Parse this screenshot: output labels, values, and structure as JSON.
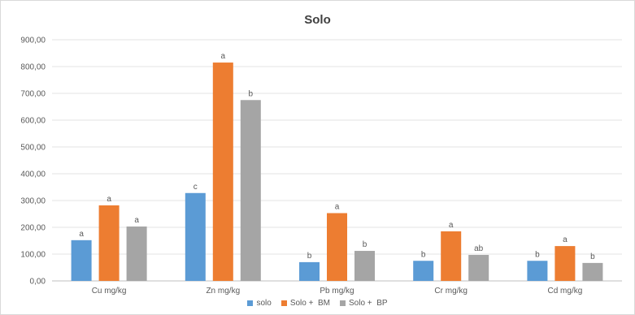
{
  "chart_data": {
    "type": "bar",
    "title": "Solo",
    "categories": [
      "Cu mg/kg",
      "Zn mg/kg",
      "Pb mg/kg",
      "Cr mg/kg",
      "Cd mg/kg"
    ],
    "series": [
      {
        "name": "solo",
        "color": "#5b9bd5",
        "values": [
          152,
          328,
          70,
          75,
          75
        ],
        "labels": [
          "a",
          "c",
          "b",
          "b",
          "b"
        ]
      },
      {
        "name": "Solo +  BM",
        "color": "#ed7d31",
        "values": [
          282,
          815,
          253,
          185,
          130
        ],
        "labels": [
          "a",
          "a",
          "a",
          "a",
          "a"
        ]
      },
      {
        "name": "Solo +  BP",
        "color": "#a5a5a5",
        "values": [
          203,
          675,
          112,
          97,
          67
        ],
        "labels": [
          "a",
          "b",
          "b",
          "ab",
          "b"
        ]
      }
    ],
    "y_ticks": [
      "0,00",
      "100,00",
      "200,00",
      "300,00",
      "400,00",
      "500,00",
      "600,00",
      "700,00",
      "800,00",
      "900,00"
    ],
    "ylim": [
      0,
      900
    ],
    "grid": true,
    "legend_position": "bottom",
    "xlabel": "",
    "ylabel": ""
  }
}
